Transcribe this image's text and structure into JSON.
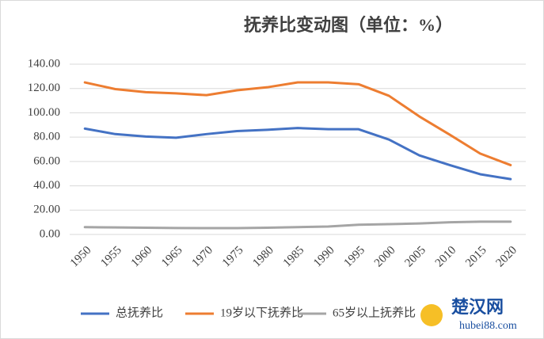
{
  "chart_data": {
    "type": "line",
    "title": "抚养比变动图（单位：%）",
    "categories": [
      "1950",
      "1955",
      "1960",
      "1965",
      "1970",
      "1975",
      "1980",
      "1985",
      "1990",
      "1995",
      "2000",
      "2005",
      "2010",
      "2015",
      "2020"
    ],
    "series": [
      {
        "name": "总抚养比",
        "color": "#4472c4",
        "values": [
          87,
          82.5,
          80.5,
          79.5,
          82.5,
          85,
          86,
          87.5,
          86.5,
          86.5,
          78,
          65,
          57,
          49.5,
          45.5
        ]
      },
      {
        "name": "19岁以下抚养比",
        "color": "#ed7d31",
        "values": [
          125,
          119.5,
          117,
          116,
          114.5,
          118.5,
          121,
          125,
          125,
          123.5,
          114,
          97,
          82,
          66.5,
          57
        ]
      },
      {
        "name": "65岁以上抚养比",
        "color": "#a5a5a5",
        "values": [
          6,
          5.8,
          5.5,
          5.3,
          5.2,
          5.2,
          5.5,
          6,
          6.5,
          8,
          8.5,
          9,
          10,
          10.5,
          10.5
        ]
      }
    ],
    "ylim": [
      0,
      140
    ],
    "yticks": [
      {
        "value": 0,
        "label": "0.00"
      },
      {
        "value": 20,
        "label": "20.00"
      },
      {
        "value": 40,
        "label": "40.00"
      },
      {
        "value": 60,
        "label": "60.00"
      },
      {
        "value": 80,
        "label": "80.00"
      },
      {
        "value": 100,
        "label": "100.00"
      },
      {
        "value": 120,
        "label": "120.00"
      },
      {
        "value": 140,
        "label": "140.00"
      }
    ],
    "grid": true,
    "legend": "bottom"
  },
  "watermark": {
    "name": "楚汉网",
    "url": "hubei88.com"
  }
}
